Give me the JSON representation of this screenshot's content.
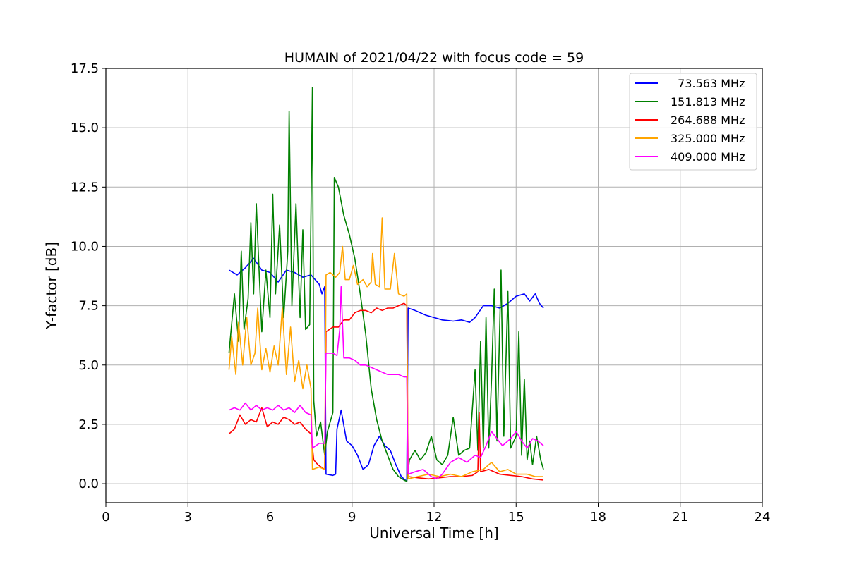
{
  "chart_data": {
    "type": "line",
    "title": "HUMAIN of 2021/04/22 with focus code = 59",
    "xlabel": "Universal Time [h]",
    "ylabel": "Y-factor [dB]",
    "xlim": [
      0,
      24
    ],
    "ylim": [
      -0.8,
      17.5
    ],
    "xticks": [
      0,
      3,
      6,
      9,
      12,
      15,
      18,
      21,
      24
    ],
    "xtick_labels": [
      "0",
      "3",
      "6",
      "9",
      "12",
      "15",
      "18",
      "21",
      "24"
    ],
    "yticks": [
      0,
      2.5,
      5,
      7.5,
      10,
      12.5,
      15,
      17.5
    ],
    "ytick_labels": [
      "0.0",
      "2.5",
      "5.0",
      "7.5",
      "10.0",
      "12.5",
      "15.0",
      "17.5"
    ],
    "grid": true,
    "legend_position": "top-right",
    "series": [
      {
        "name": "  73.563 MHz",
        "color": "#0000ff",
        "points": [
          [
            4.5,
            9.0
          ],
          [
            4.8,
            8.8
          ],
          [
            5.1,
            9.1
          ],
          [
            5.4,
            9.5
          ],
          [
            5.7,
            9.0
          ],
          [
            6.0,
            8.9
          ],
          [
            6.3,
            8.5
          ],
          [
            6.6,
            9.0
          ],
          [
            6.9,
            8.9
          ],
          [
            7.2,
            8.7
          ],
          [
            7.5,
            8.8
          ],
          [
            7.8,
            8.4
          ],
          [
            7.9,
            8.0
          ],
          [
            8.0,
            8.3
          ],
          [
            8.05,
            0.4
          ],
          [
            8.3,
            0.35
          ],
          [
            8.4,
            0.4
          ],
          [
            8.45,
            2.3
          ],
          [
            8.6,
            3.1
          ],
          [
            8.8,
            1.8
          ],
          [
            9.0,
            1.6
          ],
          [
            9.2,
            1.2
          ],
          [
            9.4,
            0.6
          ],
          [
            9.6,
            0.8
          ],
          [
            9.8,
            1.6
          ],
          [
            10.0,
            2.0
          ],
          [
            10.2,
            1.6
          ],
          [
            10.4,
            1.4
          ],
          [
            10.6,
            0.8
          ],
          [
            10.8,
            0.3
          ],
          [
            11.0,
            0.1
          ],
          [
            11.05,
            7.4
          ],
          [
            11.3,
            7.3
          ],
          [
            11.7,
            7.1
          ],
          [
            12.0,
            7.0
          ],
          [
            12.3,
            6.9
          ],
          [
            12.7,
            6.85
          ],
          [
            13.0,
            6.9
          ],
          [
            13.3,
            6.8
          ],
          [
            13.5,
            7.0
          ],
          [
            13.8,
            7.5
          ],
          [
            14.1,
            7.5
          ],
          [
            14.4,
            7.4
          ],
          [
            14.7,
            7.6
          ],
          [
            15.0,
            7.9
          ],
          [
            15.3,
            8.0
          ],
          [
            15.5,
            7.7
          ],
          [
            15.7,
            8.0
          ],
          [
            15.85,
            7.6
          ],
          [
            16.0,
            7.4
          ]
        ]
      },
      {
        "name": "151.813 MHz",
        "color": "#008000",
        "points": [
          [
            4.5,
            5.5
          ],
          [
            4.7,
            8.0
          ],
          [
            4.85,
            6.0
          ],
          [
            4.95,
            9.8
          ],
          [
            5.05,
            6.5
          ],
          [
            5.2,
            7.8
          ],
          [
            5.3,
            11.0
          ],
          [
            5.4,
            8.0
          ],
          [
            5.5,
            11.8
          ],
          [
            5.6,
            9.0
          ],
          [
            5.7,
            6.4
          ],
          [
            5.85,
            9.0
          ],
          [
            6.0,
            7.0
          ],
          [
            6.1,
            12.2
          ],
          [
            6.2,
            8.0
          ],
          [
            6.35,
            10.9
          ],
          [
            6.5,
            7.0
          ],
          [
            6.65,
            9.8
          ],
          [
            6.7,
            15.7
          ],
          [
            6.8,
            7.5
          ],
          [
            6.95,
            11.8
          ],
          [
            7.1,
            7.0
          ],
          [
            7.2,
            10.7
          ],
          [
            7.3,
            6.5
          ],
          [
            7.45,
            6.7
          ],
          [
            7.55,
            16.7
          ],
          [
            7.6,
            3.5
          ],
          [
            7.7,
            2.0
          ],
          [
            7.85,
            2.6
          ],
          [
            8.0,
            1.2
          ],
          [
            8.1,
            2.2
          ],
          [
            8.3,
            3.0
          ],
          [
            8.35,
            12.9
          ],
          [
            8.5,
            12.5
          ],
          [
            8.7,
            11.3
          ],
          [
            8.9,
            10.5
          ],
          [
            9.1,
            9.5
          ],
          [
            9.3,
            8.0
          ],
          [
            9.5,
            6.3
          ],
          [
            9.7,
            4.0
          ],
          [
            9.9,
            2.7
          ],
          [
            10.1,
            1.8
          ],
          [
            10.3,
            1.2
          ],
          [
            10.5,
            0.6
          ],
          [
            10.7,
            0.3
          ],
          [
            10.9,
            0.15
          ],
          [
            11.0,
            0.1
          ],
          [
            11.1,
            1.0
          ],
          [
            11.3,
            1.4
          ],
          [
            11.5,
            1.0
          ],
          [
            11.7,
            1.3
          ],
          [
            11.9,
            2.0
          ],
          [
            12.1,
            1.0
          ],
          [
            12.3,
            0.8
          ],
          [
            12.5,
            1.2
          ],
          [
            12.7,
            2.8
          ],
          [
            12.9,
            1.2
          ],
          [
            13.1,
            1.4
          ],
          [
            13.3,
            1.5
          ],
          [
            13.5,
            4.8
          ],
          [
            13.6,
            1.4
          ],
          [
            13.7,
            6.0
          ],
          [
            13.8,
            1.5
          ],
          [
            13.9,
            7.0
          ],
          [
            14.0,
            1.5
          ],
          [
            14.1,
            4.4
          ],
          [
            14.2,
            8.2
          ],
          [
            14.3,
            1.8
          ],
          [
            14.45,
            9.0
          ],
          [
            14.55,
            2.0
          ],
          [
            14.7,
            8.1
          ],
          [
            14.8,
            1.5
          ],
          [
            15.0,
            2.0
          ],
          [
            15.1,
            6.4
          ],
          [
            15.2,
            1.2
          ],
          [
            15.3,
            4.4
          ],
          [
            15.4,
            1.0
          ],
          [
            15.5,
            1.8
          ],
          [
            15.6,
            0.8
          ],
          [
            15.75,
            2.0
          ],
          [
            15.9,
            1.0
          ],
          [
            16.0,
            0.6
          ]
        ]
      },
      {
        "name": "264.688 MHz",
        "color": "#ff0000",
        "points": [
          [
            4.5,
            2.1
          ],
          [
            4.7,
            2.3
          ],
          [
            4.9,
            2.9
          ],
          [
            5.1,
            2.5
          ],
          [
            5.3,
            2.7
          ],
          [
            5.5,
            2.6
          ],
          [
            5.7,
            3.2
          ],
          [
            5.9,
            2.4
          ],
          [
            6.1,
            2.6
          ],
          [
            6.3,
            2.5
          ],
          [
            6.5,
            2.8
          ],
          [
            6.7,
            2.7
          ],
          [
            6.9,
            2.5
          ],
          [
            7.1,
            2.6
          ],
          [
            7.3,
            2.3
          ],
          [
            7.5,
            2.1
          ],
          [
            7.6,
            1.0
          ],
          [
            7.75,
            0.8
          ],
          [
            8.0,
            0.6
          ],
          [
            8.05,
            6.4
          ],
          [
            8.3,
            6.6
          ],
          [
            8.5,
            6.6
          ],
          [
            8.7,
            6.9
          ],
          [
            8.9,
            6.9
          ],
          [
            9.1,
            7.2
          ],
          [
            9.3,
            7.3
          ],
          [
            9.5,
            7.3
          ],
          [
            9.7,
            7.2
          ],
          [
            9.9,
            7.4
          ],
          [
            10.1,
            7.3
          ],
          [
            10.3,
            7.4
          ],
          [
            10.5,
            7.4
          ],
          [
            10.7,
            7.5
          ],
          [
            10.9,
            7.6
          ],
          [
            11.0,
            7.5
          ],
          [
            11.05,
            0.3
          ],
          [
            11.4,
            0.25
          ],
          [
            11.8,
            0.2
          ],
          [
            12.2,
            0.25
          ],
          [
            12.6,
            0.3
          ],
          [
            13.0,
            0.3
          ],
          [
            13.4,
            0.35
          ],
          [
            13.6,
            0.5
          ],
          [
            13.65,
            3.0
          ],
          [
            13.7,
            0.5
          ],
          [
            14.0,
            0.6
          ],
          [
            14.4,
            0.4
          ],
          [
            14.8,
            0.35
          ],
          [
            15.2,
            0.3
          ],
          [
            15.6,
            0.2
          ],
          [
            16.0,
            0.15
          ]
        ]
      },
      {
        "name": "325.000 MHz",
        "color": "#ffa500",
        "points": [
          [
            4.5,
            4.8
          ],
          [
            4.6,
            6.2
          ],
          [
            4.75,
            4.6
          ],
          [
            4.85,
            6.8
          ],
          [
            5.0,
            5.0
          ],
          [
            5.15,
            7.0
          ],
          [
            5.3,
            5.0
          ],
          [
            5.45,
            5.5
          ],
          [
            5.55,
            7.4
          ],
          [
            5.7,
            4.8
          ],
          [
            5.85,
            5.7
          ],
          [
            6.0,
            4.7
          ],
          [
            6.15,
            5.8
          ],
          [
            6.3,
            5.0
          ],
          [
            6.45,
            7.4
          ],
          [
            6.6,
            4.6
          ],
          [
            6.75,
            6.6
          ],
          [
            6.9,
            4.3
          ],
          [
            7.05,
            5.2
          ],
          [
            7.2,
            4.0
          ],
          [
            7.35,
            5.0
          ],
          [
            7.5,
            4.0
          ],
          [
            7.55,
            0.6
          ],
          [
            7.8,
            0.7
          ],
          [
            8.0,
            0.6
          ],
          [
            8.05,
            8.8
          ],
          [
            8.2,
            8.9
          ],
          [
            8.4,
            8.7
          ],
          [
            8.55,
            8.9
          ],
          [
            8.65,
            10.0
          ],
          [
            8.75,
            8.6
          ],
          [
            8.9,
            8.6
          ],
          [
            9.05,
            9.2
          ],
          [
            9.2,
            8.4
          ],
          [
            9.4,
            8.6
          ],
          [
            9.55,
            8.3
          ],
          [
            9.7,
            8.5
          ],
          [
            9.75,
            9.7
          ],
          [
            9.85,
            8.4
          ],
          [
            10.0,
            8.3
          ],
          [
            10.1,
            11.2
          ],
          [
            10.2,
            8.2
          ],
          [
            10.4,
            8.2
          ],
          [
            10.55,
            9.7
          ],
          [
            10.7,
            8.0
          ],
          [
            10.9,
            7.9
          ],
          [
            11.0,
            8.0
          ],
          [
            11.05,
            0.2
          ],
          [
            11.4,
            0.3
          ],
          [
            11.8,
            0.4
          ],
          [
            12.2,
            0.3
          ],
          [
            12.6,
            0.4
          ],
          [
            13.0,
            0.3
          ],
          [
            13.4,
            0.5
          ],
          [
            13.8,
            0.6
          ],
          [
            14.1,
            0.9
          ],
          [
            14.4,
            0.5
          ],
          [
            14.7,
            0.6
          ],
          [
            15.0,
            0.4
          ],
          [
            15.4,
            0.4
          ],
          [
            15.7,
            0.3
          ],
          [
            16.0,
            0.3
          ]
        ]
      },
      {
        "name": "409.000 MHz",
        "color": "#ff00ff",
        "points": [
          [
            4.5,
            3.1
          ],
          [
            4.7,
            3.2
          ],
          [
            4.9,
            3.1
          ],
          [
            5.1,
            3.4
          ],
          [
            5.3,
            3.1
          ],
          [
            5.5,
            3.3
          ],
          [
            5.7,
            3.1
          ],
          [
            5.9,
            3.2
          ],
          [
            6.1,
            3.1
          ],
          [
            6.3,
            3.3
          ],
          [
            6.5,
            3.1
          ],
          [
            6.7,
            3.2
          ],
          [
            6.9,
            3.0
          ],
          [
            7.1,
            3.3
          ],
          [
            7.3,
            3.0
          ],
          [
            7.5,
            2.9
          ],
          [
            7.55,
            1.5
          ],
          [
            7.8,
            1.7
          ],
          [
            8.0,
            1.7
          ],
          [
            8.05,
            5.5
          ],
          [
            8.3,
            5.5
          ],
          [
            8.45,
            5.4
          ],
          [
            8.55,
            6.5
          ],
          [
            8.6,
            8.3
          ],
          [
            8.7,
            5.3
          ],
          [
            8.9,
            5.3
          ],
          [
            9.1,
            5.2
          ],
          [
            9.3,
            5.0
          ],
          [
            9.5,
            5.0
          ],
          [
            9.7,
            4.9
          ],
          [
            9.9,
            4.8
          ],
          [
            10.1,
            4.7
          ],
          [
            10.3,
            4.6
          ],
          [
            10.5,
            4.6
          ],
          [
            10.7,
            4.6
          ],
          [
            10.9,
            4.5
          ],
          [
            11.0,
            4.5
          ],
          [
            11.05,
            0.4
          ],
          [
            11.3,
            0.5
          ],
          [
            11.6,
            0.6
          ],
          [
            11.9,
            0.3
          ],
          [
            12.1,
            0.2
          ],
          [
            12.3,
            0.4
          ],
          [
            12.6,
            0.9
          ],
          [
            12.9,
            1.1
          ],
          [
            13.2,
            0.9
          ],
          [
            13.5,
            1.2
          ],
          [
            13.7,
            1.1
          ],
          [
            13.9,
            1.6
          ],
          [
            14.1,
            2.2
          ],
          [
            14.3,
            1.9
          ],
          [
            14.5,
            1.6
          ],
          [
            14.8,
            1.9
          ],
          [
            15.0,
            2.2
          ],
          [
            15.2,
            1.8
          ],
          [
            15.4,
            1.5
          ],
          [
            15.6,
            1.9
          ],
          [
            15.8,
            1.8
          ],
          [
            16.0,
            1.6
          ]
        ]
      }
    ]
  }
}
